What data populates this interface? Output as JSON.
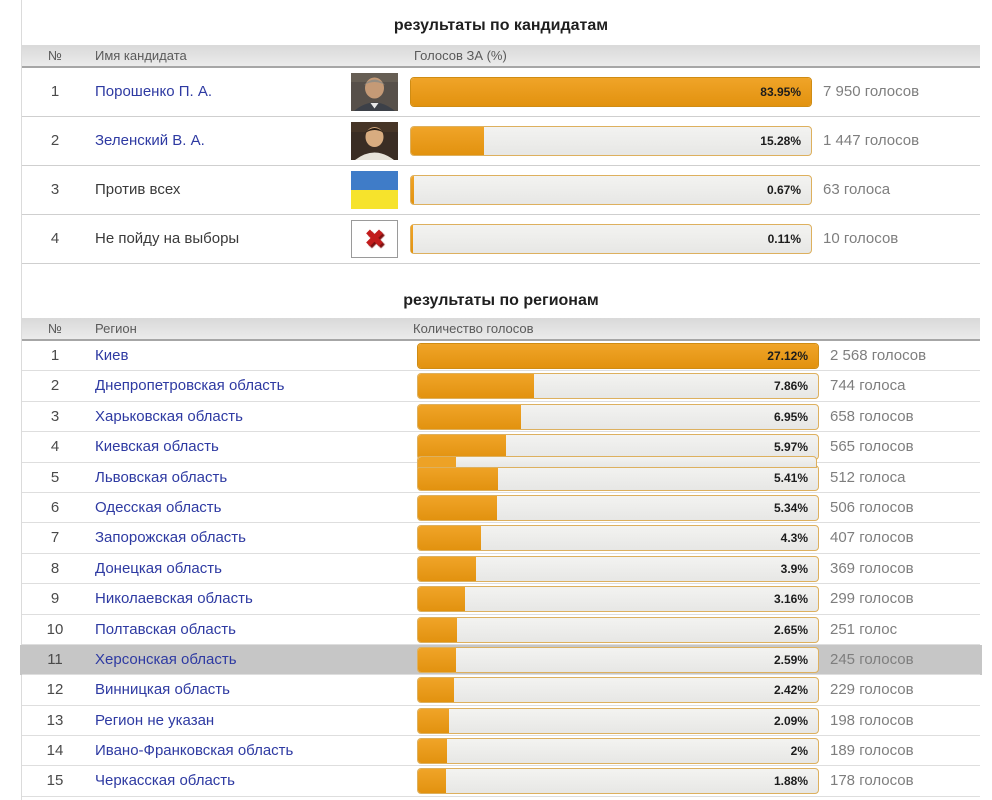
{
  "candidates": {
    "title": "результаты по кандидатам",
    "headers": {
      "num": "№",
      "name": "Имя кандидата",
      "votes": "Голосов ЗА (%)"
    },
    "rows": [
      {
        "num": "1",
        "name": "Порошенко П. А.",
        "link": true,
        "icon": "poroshenko-photo-icon",
        "percent": 83.95,
        "percent_label": "83.95%",
        "votes": "7 950 голосов"
      },
      {
        "num": "2",
        "name": "Зеленский В. А.",
        "link": true,
        "icon": "zelensky-photo-icon",
        "percent": 15.28,
        "percent_label": "15.28%",
        "votes": "1 447 голосов"
      },
      {
        "num": "3",
        "name": "Против всех",
        "link": false,
        "icon": "ukraine-flag-icon",
        "percent": 0.67,
        "percent_label": "0.67%",
        "votes": "63 голоса"
      },
      {
        "num": "4",
        "name": "Не пойду на выборы",
        "link": false,
        "icon": "refuse-vote-cross-icon",
        "percent": 0.11,
        "percent_label": "0.11%",
        "votes": "10 голосов"
      }
    ]
  },
  "regions": {
    "title": "результаты по регионам",
    "headers": {
      "num": "№",
      "name": "Регион",
      "votes": "Количество голосов"
    },
    "rows": [
      {
        "num": "1",
        "name": "Киев",
        "link": true,
        "percent": 27.12,
        "percent_label": "27.12%",
        "votes": "2 568 голосов"
      },
      {
        "num": "2",
        "name": "Днепропетровская область",
        "link": true,
        "percent": 7.86,
        "percent_label": "7.86%",
        "votes": "744 голоса"
      },
      {
        "num": "3",
        "name": "Харьковская область",
        "link": true,
        "percent": 6.95,
        "percent_label": "6.95%",
        "votes": "658 голосов"
      },
      {
        "num": "4",
        "name": "Киевская область",
        "link": true,
        "percent": 5.97,
        "percent_label": "5.97%",
        "votes": "565 голосов"
      },
      {
        "num": "5",
        "name": "Львовская область",
        "link": true,
        "percent": 5.41,
        "percent_label": "5.41%",
        "votes": "512 голоса"
      },
      {
        "num": "6",
        "name": "Одесская область",
        "link": true,
        "percent": 5.34,
        "percent_label": "5.34%",
        "votes": "506 голосов"
      },
      {
        "num": "7",
        "name": "Запорожская область",
        "link": true,
        "percent": 4.3,
        "percent_label": "4.3%",
        "votes": "407 голосов"
      },
      {
        "num": "8",
        "name": "Донецкая область",
        "link": true,
        "percent": 3.9,
        "percent_label": "3.9%",
        "votes": "369 голосов"
      },
      {
        "num": "9",
        "name": "Николаевская область",
        "link": true,
        "percent": 3.16,
        "percent_label": "3.16%",
        "votes": "299 голосов"
      },
      {
        "num": "10",
        "name": "Полтавская область",
        "link": true,
        "percent": 2.65,
        "percent_label": "2.65%",
        "votes": "251 голос"
      },
      {
        "num": "11",
        "name": "Херсонская область",
        "link": true,
        "percent": 2.59,
        "percent_label": "2.59%",
        "votes": "245 голосов",
        "highlighted": true
      },
      {
        "num": "12",
        "name": "Винницкая область",
        "link": true,
        "percent": 2.42,
        "percent_label": "2.42%",
        "votes": "229 голосов"
      },
      {
        "num": "13",
        "name": "Регион не указан",
        "link": true,
        "percent": 2.09,
        "percent_label": "2.09%",
        "votes": "198 голосов"
      },
      {
        "num": "14",
        "name": "Ивано-Франковская область",
        "link": true,
        "percent": 2,
        "percent_label": "2%",
        "votes": "189 голосов"
      },
      {
        "num": "15",
        "name": "Черкасская область",
        "link": true,
        "percent": 1.88,
        "percent_label": "1.88%",
        "votes": "178 голосов"
      }
    ]
  },
  "colors": {
    "bar_fill": "#e99b1c",
    "bar_border": "#ddb05e",
    "bar_track": "#ececea",
    "link_blue": "#2e3aa2",
    "highlight_gray": "#c6c6c6",
    "header_gray": "#e0e0e0",
    "votes_gray": "#7e7e7e",
    "flag_blue": "#3f7cc8",
    "flag_yellow": "#f6e32c",
    "cross_red": "#c21c1c"
  },
  "chart_data": [
    {
      "type": "bar",
      "title": "результаты по кандидатам",
      "categories": [
        "Порошенко П. А.",
        "Зеленский В. А.",
        "Против всех",
        "Не пойду на выборы"
      ],
      "values": [
        83.95,
        15.28,
        0.67,
        0.11
      ],
      "value_labels": [
        "83.95%",
        "15.28%",
        "0.67%",
        "0.11%"
      ],
      "counts": [
        7950,
        1447,
        63,
        10
      ],
      "xlabel": "Голосов ЗА (%)",
      "ylabel": "Имя кандидата",
      "orientation": "horizontal",
      "note": "bar length scaled relative to max value"
    },
    {
      "type": "bar",
      "title": "результаты по регионам",
      "categories": [
        "Киев",
        "Днепропетровская область",
        "Харьковская область",
        "Киевская область",
        "Львовская область",
        "Одесская область",
        "Запорожская область",
        "Донецкая область",
        "Николаевская область",
        "Полтавская область",
        "Херсонская область",
        "Винницкая область",
        "Регион не указан",
        "Ивано-Франковская область",
        "Черкасская область"
      ],
      "values": [
        27.12,
        7.86,
        6.95,
        5.97,
        5.41,
        5.34,
        4.3,
        3.9,
        3.16,
        2.65,
        2.59,
        2.42,
        2.09,
        2,
        1.88
      ],
      "counts": [
        2568,
        744,
        658,
        565,
        512,
        506,
        407,
        369,
        299,
        251,
        245,
        229,
        198,
        189,
        178
      ],
      "xlabel": "Количество голосов",
      "ylabel": "Регион",
      "orientation": "horizontal",
      "note": "bar length scaled relative to max value"
    }
  ]
}
